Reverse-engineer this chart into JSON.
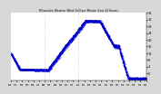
{
  "title": "Milwaukee Weather Wind Chill per Minute (Last 24 Hours)",
  "line_color": "#0000cc",
  "background_color": "#d8d8d8",
  "plot_bg_color": "#ffffff",
  "ylim": [
    -4,
    36
  ],
  "vline_positions": [
    360,
    720
  ],
  "vline_color": "#aaaaaa",
  "ylabel_right_values": [
    0,
    4,
    8,
    12,
    16,
    20,
    24,
    28,
    32,
    36
  ]
}
